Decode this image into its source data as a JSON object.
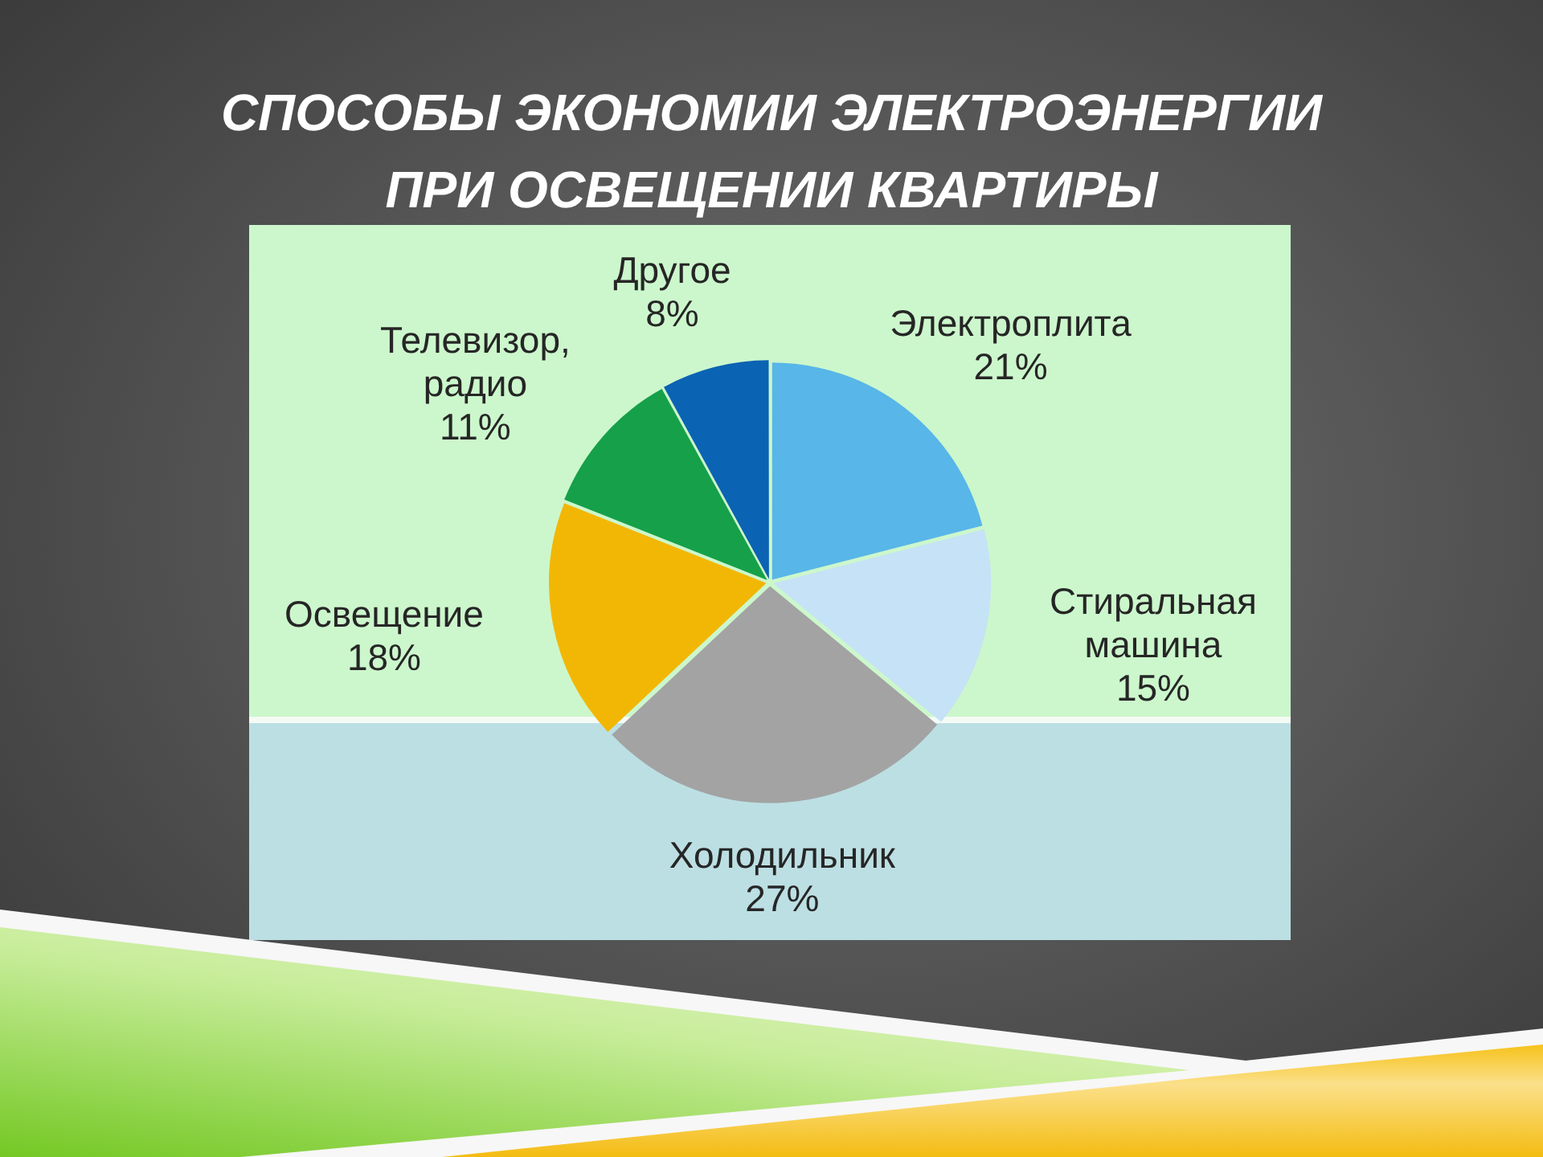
{
  "chart_data": {
    "type": "pie",
    "title": "СПОСОБЫ ЭКОНОМИИ ЭЛЕКТРОЭНЕРГИИ ПРИ ОСВЕЩЕНИИ КВАРТИРЫ",
    "categories": [
      "Электроплита",
      "Стиральная машина",
      "Холодильник",
      "Освещение",
      "Телевизор, радио",
      "Другое"
    ],
    "values": [
      21,
      15,
      27,
      18,
      11,
      8
    ],
    "colors": [
      "#58b6e8",
      "#c6e2f6",
      "#a3a3a3",
      "#f2b705",
      "#16a04a",
      "#0b63b3"
    ],
    "value_labels": [
      "21%",
      "15%",
      "27%",
      "18%",
      "11%",
      "8%"
    ]
  }
}
